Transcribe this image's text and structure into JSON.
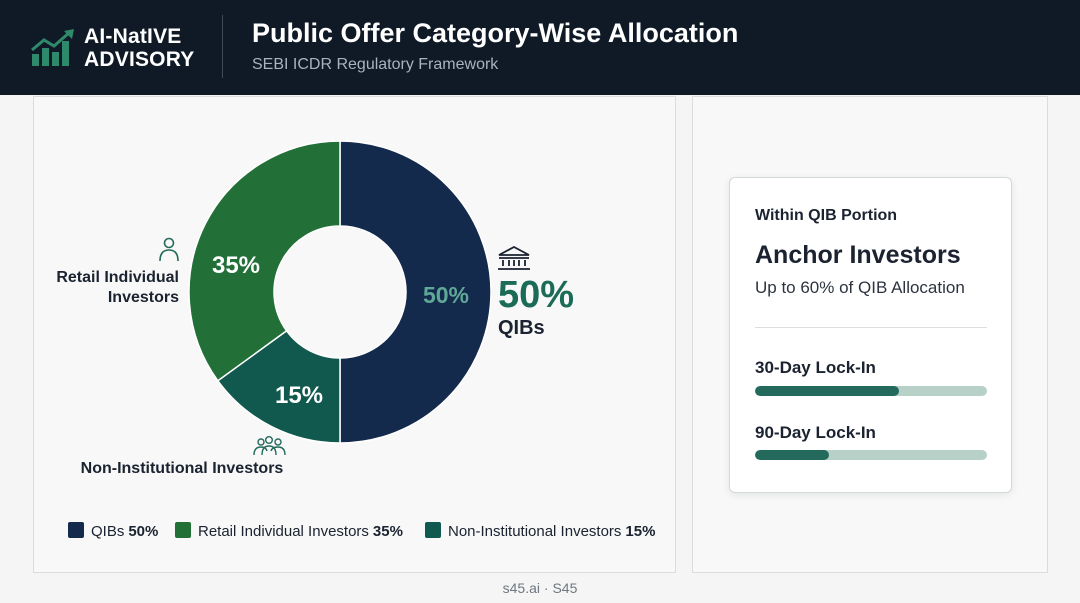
{
  "header": {
    "logo_line1": "AI-NatIVE",
    "logo_line2": "ADVISORY",
    "title": "Public Offer Category-Wise Allocation",
    "subtitle": "SEBI ICDR Regulatory Framework"
  },
  "chart_data": {
    "type": "pie",
    "donut": true,
    "categories": [
      "QIBs",
      "Retail Individual Investors",
      "Non-Institutional Investors"
    ],
    "values": [
      50,
      35,
      15
    ],
    "unit": "%",
    "colors": [
      "#142a4c",
      "#227038",
      "#11594e"
    ],
    "slice_labels": [
      "50%",
      "35%",
      "15%"
    ],
    "callouts": [
      {
        "icon": "bank-icon",
        "value": "50%",
        "label": "QIBs"
      },
      {
        "icon": "person-icon",
        "label_lines": [
          "Retail Individual",
          "Investors"
        ]
      },
      {
        "icon": "group-icon",
        "label": "Non-Institutional Investors"
      }
    ],
    "legend": {
      "placement": "bottom",
      "items": [
        {
          "name": "QIBs",
          "value": "50%",
          "color": "#142a4c"
        },
        {
          "name": "Retail Individual Investors",
          "value": "35%",
          "color": "#227038"
        },
        {
          "name": "Non-Institutional Investors",
          "value": "15%",
          "color": "#11594e"
        }
      ]
    }
  },
  "card": {
    "eyebrow": "Within QIB Portion",
    "title": "Anchor Investors",
    "subtitle": "Up to 60% of QIB Allocation",
    "lockins": [
      {
        "label": "30-Day Lock-In",
        "progress": 0.62
      },
      {
        "label": "90-Day Lock-In",
        "progress": 0.32
      }
    ]
  },
  "footer": {
    "text": "s45.ai · S45"
  }
}
